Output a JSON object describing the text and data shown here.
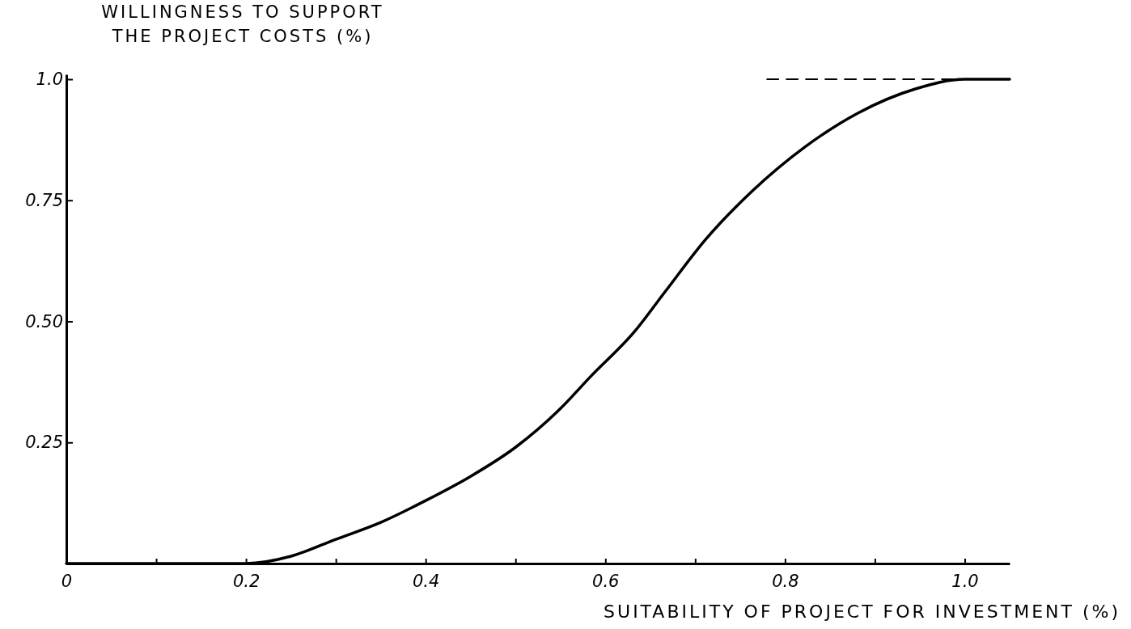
{
  "chart_data": {
    "type": "line",
    "xlabel": "SUITABILITY OF PROJECT FOR INVESTMENT (%)",
    "ylabel": "WILLINGNESS TO SUPPORT THE PROJECT COSTS (%)",
    "xlim": [
      0,
      1.05
    ],
    "ylim": [
      0,
      1.01
    ],
    "xticks": [
      0,
      {
        "value": 0.1,
        "label": null
      },
      0.2,
      {
        "value": 0.3,
        "label": null
      },
      0.4,
      {
        "value": 0.5,
        "label": null
      },
      0.6,
      {
        "value": 0.7,
        "label": null
      },
      0.8,
      {
        "value": 0.9,
        "label": null
      },
      {
        "value": 1,
        "label": "1.0"
      }
    ],
    "yticks": [
      0.25,
      {
        "value": 0.5,
        "label": "0.50"
      },
      0.75,
      {
        "value": 1,
        "label": "1.0"
      }
    ],
    "grid": false,
    "marker": "none",
    "series": [
      {
        "color": "#000000",
        "line_style": "solid",
        "x": [
          0,
          0.1,
          0.2,
          0.25,
          0.3,
          0.35,
          0.4,
          0.45,
          0.5,
          0.55,
          0.583,
          0.633,
          0.666,
          0.712,
          0.764,
          0.822,
          0.881,
          0.945,
          1.0,
          1.05
        ],
        "values": [
          0,
          0,
          0,
          0.015,
          0.05,
          0.085,
          0.13,
          0.18,
          0.24,
          0.32,
          0.385,
          0.48,
          0.56,
          0.67,
          0.77,
          0.86,
          0.93,
          0.98,
          1.0,
          1.0
        ]
      },
      {
        "color": "#000000",
        "line_style": "dashed",
        "x": [
          0.78,
          1.0
        ],
        "values": [
          1.0,
          1.0
        ]
      }
    ]
  }
}
